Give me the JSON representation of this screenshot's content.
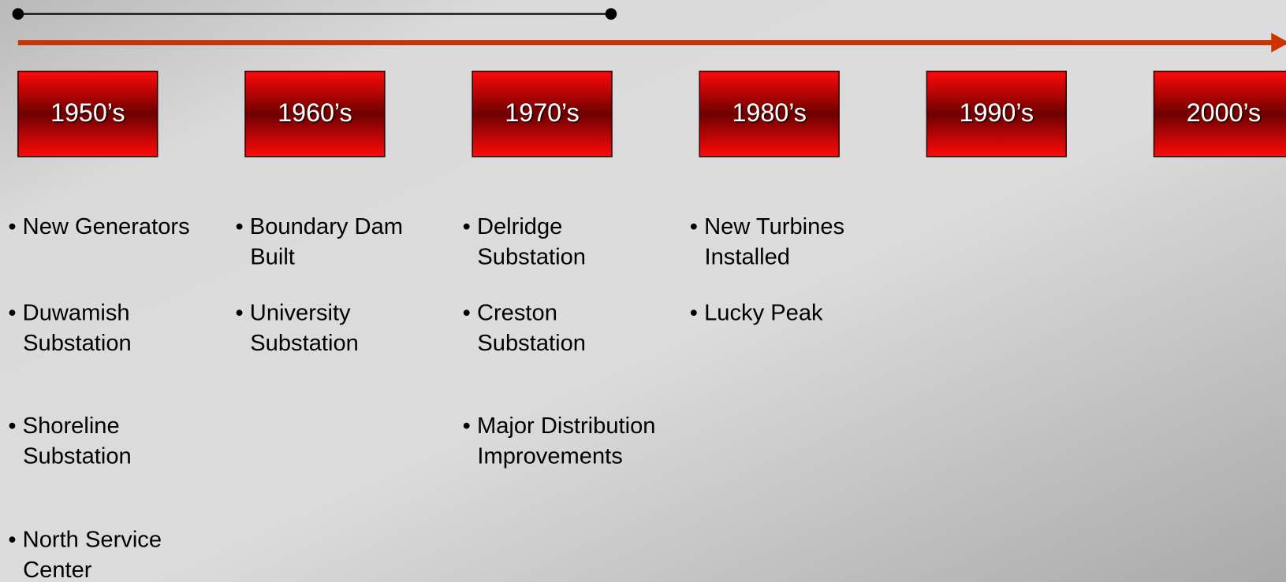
{
  "timeline": {
    "decades": [
      {
        "label": "1950’s",
        "items": [
          [
            "• New Generators"
          ],
          [
            "• Duwamish",
            "Substation"
          ],
          [
            "• Shoreline",
            "Substation"
          ],
          [
            "• North Service",
            "Center"
          ]
        ]
      },
      {
        "label": "1960’s",
        "items": [
          [
            "• Boundary Dam",
            "Built"
          ],
          [
            "• University",
            "Substation"
          ]
        ]
      },
      {
        "label": "1970’s",
        "items": [
          [
            "• Delridge",
            "Substation"
          ],
          [
            "• Creston",
            "Substation"
          ],
          [
            "• Major Distribution",
            "Improvements"
          ]
        ]
      },
      {
        "label": "1980’s",
        "items": [
          [
            "• New Turbines",
            "Installed"
          ],
          [
            "• Lucky Peak"
          ]
        ]
      },
      {
        "label": "1990’s",
        "items": []
      },
      {
        "label": "2000’s",
        "items": []
      }
    ]
  }
}
